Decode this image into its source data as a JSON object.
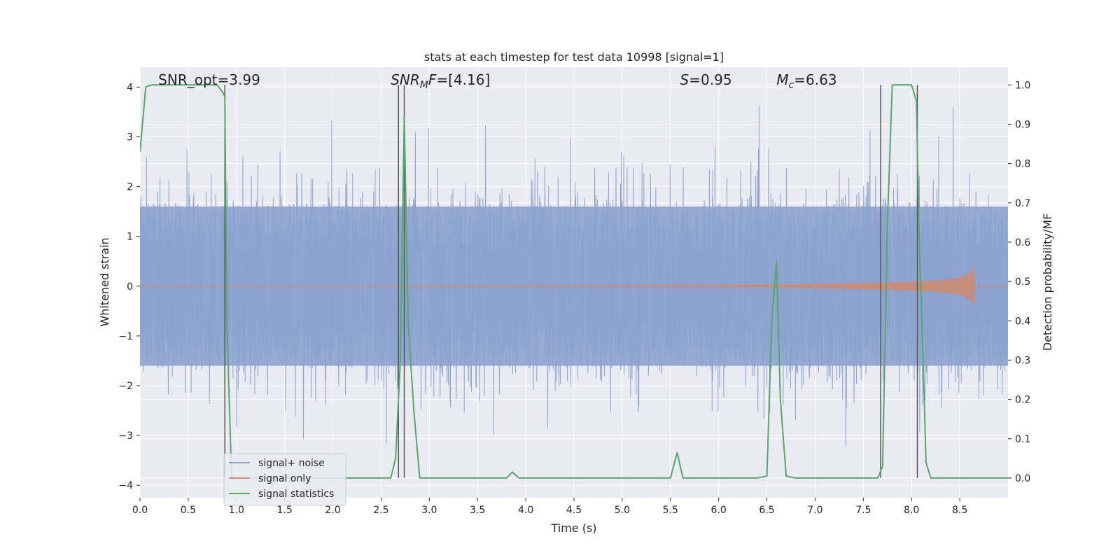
{
  "chart_data": {
    "type": "line",
    "title": "stats at each timestep for test data 10998 [signal=1]",
    "xlabel": "Time (s)",
    "ylabel": "Whitened strain",
    "y2label": "Detection probability/MF",
    "xlim": [
      0.0,
      9.0
    ],
    "ylim": [
      -4.25,
      4.4
    ],
    "y2lim": [
      -0.05,
      1.045
    ],
    "xticks": [
      "0.0",
      "0.5",
      "1.0",
      "1.5",
      "2.0",
      "2.5",
      "3.0",
      "3.5",
      "4.0",
      "4.5",
      "5.0",
      "5.5",
      "6.0",
      "6.5",
      "7.0",
      "7.5",
      "8.0",
      "8.5"
    ],
    "yticks": [
      "4",
      "3",
      "2",
      "1",
      "0",
      "−1",
      "−2",
      "−3",
      "−4"
    ],
    "y2ticks": [
      "1.0",
      "0.9",
      "0.8",
      "0.7",
      "0.6",
      "0.5",
      "0.4",
      "0.3",
      "0.2",
      "0.1",
      "0.0"
    ],
    "grid": true,
    "legend_position": "lower-left",
    "annotations": [
      {
        "text": "SNR_opt=3.99",
        "x": 0.19
      },
      {
        "text": "=[4.16]",
        "x": 2.6,
        "math_base": "SNR",
        "math_sub": "M",
        "math_tail": "F"
      },
      {
        "text": "=0.95",
        "x": 5.6,
        "math_base": "S"
      },
      {
        "text": "=6.63",
        "x": 6.6,
        "math_base": "M",
        "math_sub": "c"
      }
    ],
    "vertical_lines_x": [
      0.88,
      2.68,
      2.74,
      7.68,
      8.06
    ],
    "series": [
      {
        "name": "signal+ noise",
        "color": "#8da3cf",
        "axis": "left",
        "description_range": [
          -4.0,
          4.0
        ],
        "typical_envelope": [
          -1.6,
          1.6
        ]
      },
      {
        "name": "signal only",
        "color": "#d08a6e",
        "axis": "left",
        "envelope_x": [
          0.0,
          1.0,
          2.0,
          3.0,
          4.0,
          5.0,
          6.0,
          6.5,
          7.0,
          7.5,
          8.0,
          8.3,
          8.5,
          8.6,
          8.65,
          8.66
        ],
        "envelope_amp": [
          0.005,
          0.006,
          0.008,
          0.01,
          0.012,
          0.015,
          0.02,
          0.03,
          0.04,
          0.06,
          0.09,
          0.12,
          0.17,
          0.25,
          0.4,
          0.0
        ]
      },
      {
        "name": "signal statistics",
        "color": "#55a868",
        "axis": "right",
        "x": [
          0.0,
          0.06,
          0.12,
          0.2,
          0.3,
          0.4,
          0.5,
          0.6,
          0.7,
          0.8,
          0.86,
          0.88,
          0.9,
          0.95,
          1.0,
          1.1,
          1.5,
          2.0,
          2.5,
          2.6,
          2.65,
          2.7,
          2.74,
          2.78,
          2.84,
          2.9,
          3.0,
          3.5,
          3.8,
          3.86,
          3.93,
          4.5,
          5.0,
          5.5,
          5.57,
          5.63,
          5.69,
          6.0,
          6.4,
          6.5,
          6.55,
          6.6,
          6.64,
          6.7,
          6.8,
          7.0,
          7.1,
          7.5,
          7.65,
          7.7,
          7.75,
          7.8,
          7.9,
          8.0,
          8.05,
          8.08,
          8.12,
          8.15,
          8.2,
          8.5,
          9.0
        ],
        "values": [
          0.83,
          0.995,
          1.0,
          1.0,
          1.0,
          1.0,
          1.0,
          1.0,
          1.0,
          1.0,
          0.98,
          0.97,
          0.4,
          0.0,
          0.0,
          0.0,
          0.0,
          0.0,
          0.0,
          0.0,
          0.05,
          0.3,
          0.92,
          0.4,
          0.17,
          0.0,
          0.0,
          0.0,
          0.0,
          0.015,
          0.0,
          0.0,
          0.0,
          0.0,
          0.065,
          0.0,
          0.0,
          0.0,
          0.0,
          0.005,
          0.4,
          0.55,
          0.2,
          0.005,
          0.0,
          0.0,
          0.0,
          0.0,
          0.0,
          0.03,
          0.65,
          1.0,
          1.0,
          1.0,
          0.96,
          0.6,
          0.3,
          0.04,
          0.0,
          0.0,
          0.0
        ]
      }
    ]
  }
}
